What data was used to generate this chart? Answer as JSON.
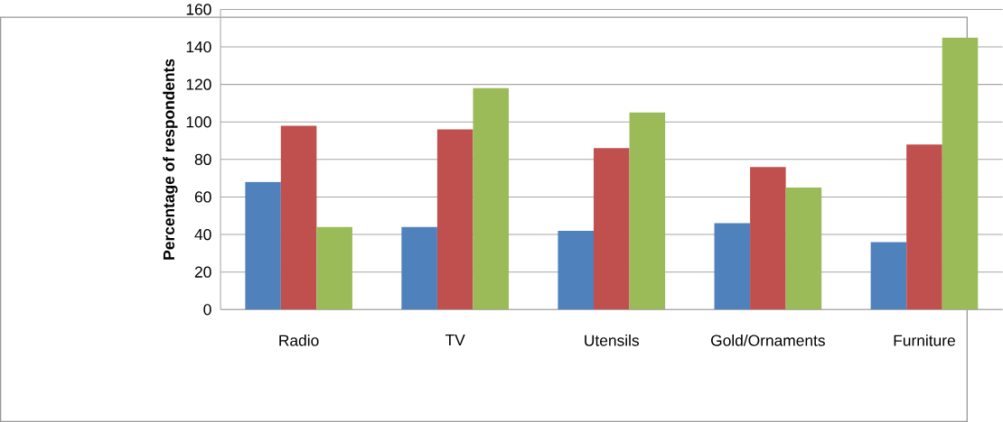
{
  "chart_data": {
    "type": "bar",
    "ylabel": "Percentage of respondents",
    "categories": [
      "Radio",
      "TV",
      "Utensils",
      "Gold/Ornaments",
      "Furniture"
    ],
    "series": [
      {
        "color": "#4f81bd",
        "values": [
          68,
          44,
          42,
          46,
          36
        ]
      },
      {
        "color": "#c0504d",
        "values": [
          98,
          96,
          86,
          76,
          88
        ]
      },
      {
        "color": "#9bbb59",
        "values": [
          44,
          118,
          105,
          65,
          145
        ]
      }
    ],
    "ylim": [
      0,
      160
    ],
    "yticks": [
      0,
      20,
      40,
      60,
      80,
      100,
      120,
      140,
      160
    ],
    "grid": "y"
  }
}
